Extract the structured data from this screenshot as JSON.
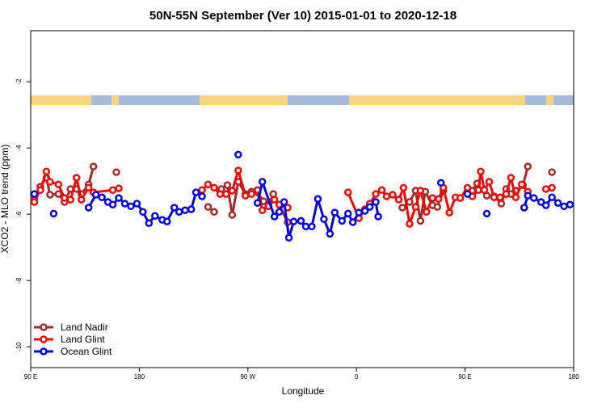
{
  "chart_data": {
    "type": "line",
    "title": "50N-55N September (Ver 10)   2015-01-01 to 2020-12-18",
    "x_label": "Longitude",
    "y_label": "XCO2 - MLO trend (ppm)",
    "xlim": [
      90,
      540
    ],
    "xticks": [
      {
        "value": 90,
        "label": "90 E"
      },
      180,
      {
        "value": 270,
        "label": "90 W"
      },
      {
        "value": 360,
        "label": "0"
      },
      {
        "value": 450,
        "label": "90 E"
      },
      {
        "value": 540,
        "label": "180"
      }
    ],
    "ylim": [
      -10.63,
      -0.46
    ],
    "yticks": [
      -2,
      -4,
      -6,
      -8,
      -10
    ],
    "legend": "lower left",
    "series": [
      {
        "name": "Land Nadir",
        "color": "#a52a2a",
        "x": [
          93,
          98,
          103,
          106,
          113,
          118,
          123,
          128,
          132,
          138,
          142,
          null,
          161,
          null,
          237,
          242,
          null,
          248,
          253,
          257,
          262,
          268,
          273,
          278,
          283,
          287,
          291,
          303,
          null,
          398,
          404,
          409,
          413,
          417,
          423,
          427,
          432,
          null,
          452,
          456,
          460,
          468,
          474,
          480,
          484,
          488,
          492,
          498,
          502,
          null,
          522
        ],
        "values": [
          -5.56,
          -5.17,
          -4.9,
          -5.41,
          -5.39,
          -5.63,
          -5.24,
          -5.24,
          -5.39,
          -5.1,
          -4.56,
          null,
          -4.73,
          null,
          -5.78,
          -5.93,
          null,
          -5.24,
          -5.12,
          -6.02,
          -5.02,
          -5.39,
          -5.32,
          -5.34,
          -5.61,
          -5.71,
          -5.39,
          -6.24,
          null,
          -5.8,
          -5.63,
          -5.29,
          -6.2,
          -5.32,
          -5.73,
          -5.78,
          -5.29,
          null,
          -5.32,
          -5.29,
          -5.07,
          -5.44,
          -5.46,
          -5.68,
          -5.24,
          -5.39,
          -5.29,
          -5.12,
          -4.56,
          null,
          -4.73
        ]
      },
      {
        "name": "Land Glint",
        "color": "#ff0000",
        "x": [
          93,
          98,
          103,
          106,
          113,
          118,
          123,
          128,
          132,
          138,
          142,
          158,
          163,
          null,
          232,
          237,
          242,
          247,
          252,
          257,
          262,
          268,
          273,
          278,
          282,
          287,
          292,
          296,
          303,
          null,
          353,
          362,
          367,
          371,
          376,
          381,
          385,
          390,
          395,
          399,
          404,
          409,
          413,
          418,
          423,
          428,
          432,
          437,
          442,
          446,
          452,
          456,
          461,
          463,
          466,
          470,
          474,
          479,
          484,
          488,
          492,
          497,
          502,
          null,
          517,
          522
        ],
        "values": [
          -5.63,
          -5.27,
          -4.71,
          -5.02,
          -5.1,
          -5.51,
          -5.56,
          -4.9,
          -5.56,
          -5.2,
          -5.34,
          -5.27,
          -5.22,
          null,
          -5.27,
          -5.1,
          -5.2,
          -5.39,
          -5.39,
          -5.29,
          -4.68,
          -5.44,
          -5.39,
          -5.27,
          -5.88,
          -5.76,
          -5.56,
          -5.71,
          -5.8,
          null,
          -5.34,
          -6.12,
          -5.85,
          -5.68,
          -5.39,
          -5.27,
          -5.46,
          -5.41,
          -5.56,
          -5.2,
          -6.29,
          -5.78,
          -5.29,
          -5.93,
          -5.51,
          -5.54,
          -5.2,
          -5.95,
          -5.49,
          -5.51,
          -5.2,
          -5.46,
          -5.27,
          -4.71,
          -5.27,
          -5.02,
          -5.49,
          -5.49,
          -5.39,
          -4.9,
          -5.49,
          -5.1,
          -5.32,
          null,
          -5.24,
          -5.2
        ]
      },
      {
        "name": "Ocean Glint",
        "color": "#0000ee",
        "x": [
          93,
          null,
          109,
          null,
          138,
          144,
          149,
          154,
          158,
          163,
          168,
          173,
          178,
          183,
          188,
          193,
          199,
          203,
          209,
          213,
          218,
          223,
          227,
          232,
          null,
          262,
          null,
          278,
          282,
          292,
          296,
          300,
          304,
          308,
          314,
          318,
          323,
          328,
          333,
          338,
          342,
          348,
          353,
          357,
          362,
          367,
          371,
          376,
          378,
          null,
          430,
          null,
          452,
          null,
          468,
          null,
          499,
          502,
          507,
          513,
          517,
          522,
          527,
          532,
          537
        ],
        "values": [
          -5.39,
          null,
          -5.98,
          null,
          -5.8,
          -5.41,
          -5.49,
          -5.63,
          -5.71,
          -5.51,
          -5.68,
          -5.76,
          -5.68,
          -5.93,
          -6.27,
          -6.05,
          -6.17,
          -6.22,
          -5.8,
          -5.93,
          -5.88,
          -5.85,
          -5.34,
          -5.46,
          null,
          -4.2,
          null,
          -5.66,
          -5.02,
          -6.07,
          -5.93,
          -5.63,
          -6.71,
          -6.22,
          -6.2,
          -6.37,
          -6.37,
          -5.54,
          -6.15,
          -6.59,
          -5.95,
          -6.2,
          -5.98,
          -6.24,
          -5.95,
          -5.9,
          -5.78,
          -5.63,
          -6.07,
          null,
          -5.05,
          null,
          -5.39,
          null,
          -5.98,
          null,
          -5.8,
          -5.44,
          -5.51,
          -5.63,
          -5.73,
          -5.49,
          -5.66,
          -5.76,
          -5.71
        ]
      }
    ]
  }
}
